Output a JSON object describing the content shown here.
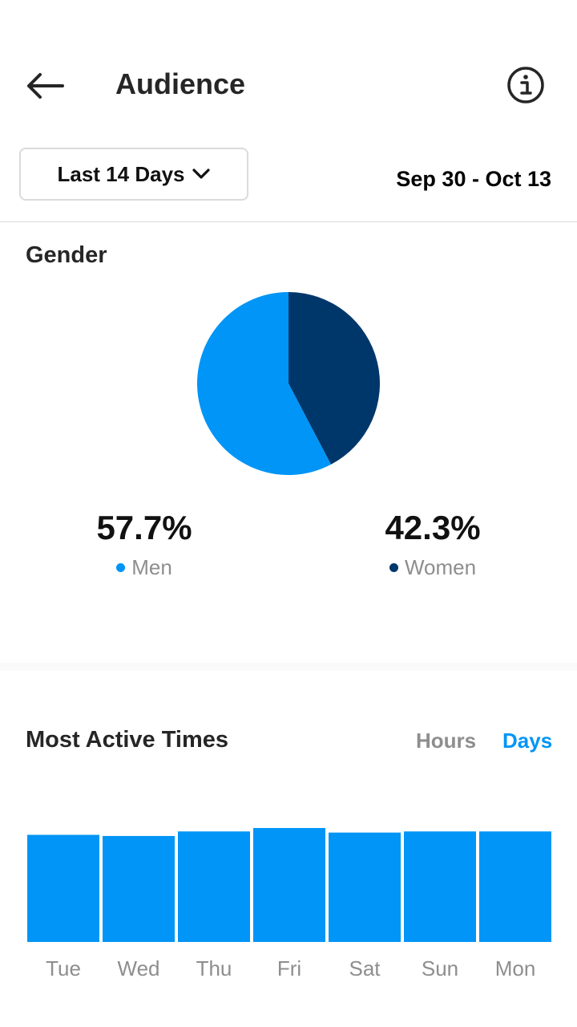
{
  "header": {
    "title": "Audience",
    "back_icon": "arrow-left-icon",
    "info_icon": "info-circle-icon"
  },
  "filter": {
    "range_label": "Last 14 Days",
    "date_range": "Sep 30 - Oct 13"
  },
  "gender": {
    "title": "Gender",
    "men": {
      "value": "57.7%",
      "label": "Men",
      "color": "#0095f6"
    },
    "women": {
      "value": "42.3%",
      "label": "Women",
      "color": "#00376b"
    }
  },
  "active": {
    "title": "Most Active Times",
    "toggle_hours": "Hours",
    "toggle_days": "Days",
    "selected": "Days"
  },
  "chart_data": [
    {
      "type": "pie",
      "categories": [
        "Men",
        "Women"
      ],
      "values": [
        57.7,
        42.3
      ],
      "colors": [
        "#0095f6",
        "#00376b"
      ]
    },
    {
      "type": "bar",
      "categories": [
        "Tue",
        "Wed",
        "Thu",
        "Fri",
        "Sat",
        "Sun",
        "Mon"
      ],
      "values": [
        94,
        93,
        97,
        100,
        96,
        97,
        97
      ],
      "color": "#0095f6"
    }
  ]
}
